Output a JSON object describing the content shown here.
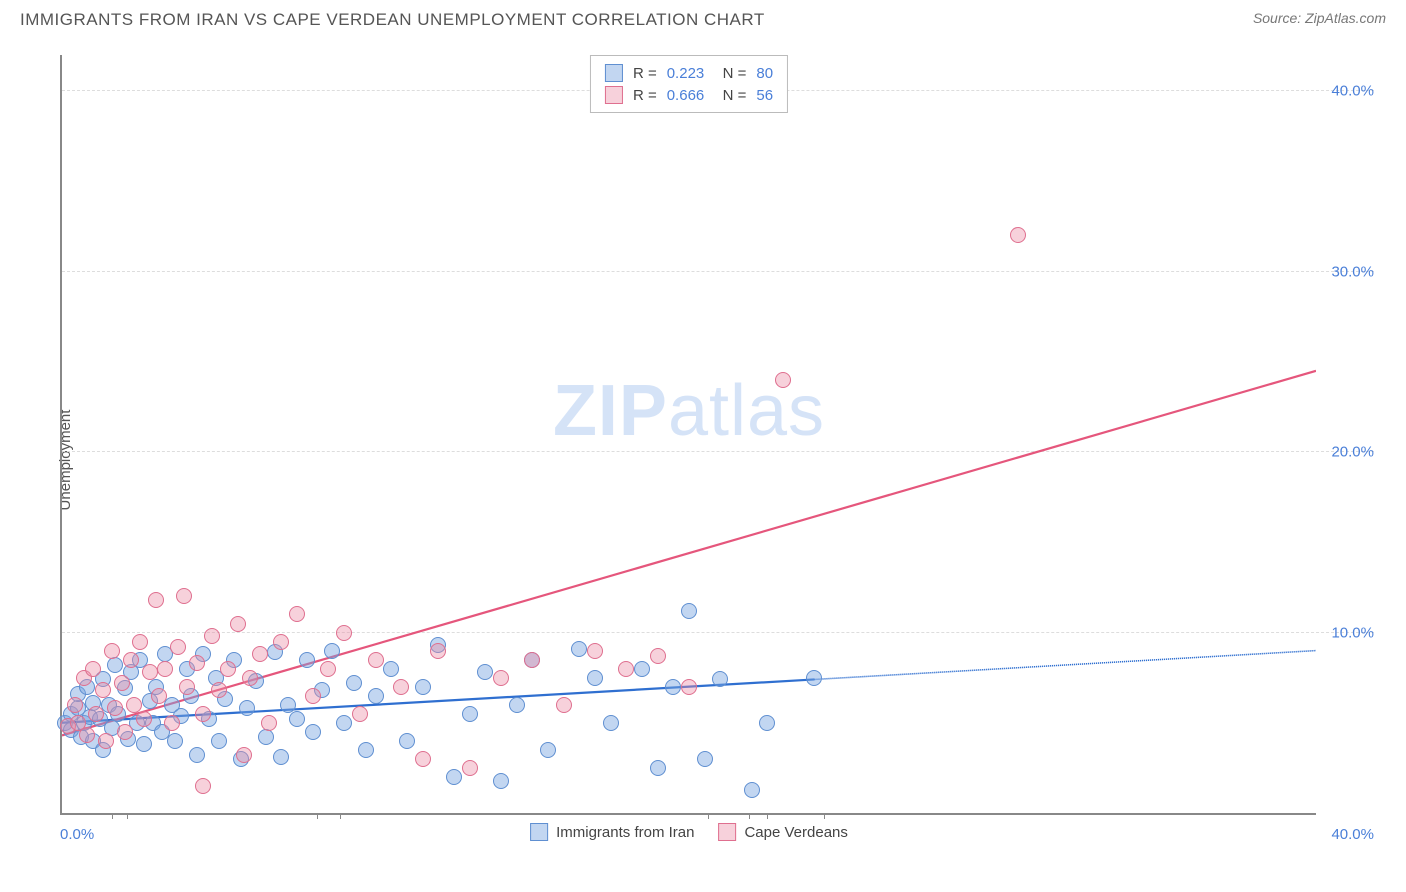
{
  "title": "IMMIGRANTS FROM IRAN VS CAPE VERDEAN UNEMPLOYMENT CORRELATION CHART",
  "source": "Source: ZipAtlas.com",
  "watermark": {
    "part1": "ZIP",
    "part2": "atlas"
  },
  "ylabel": "Unemployment",
  "chart": {
    "type": "scatter",
    "xlim": [
      0,
      40
    ],
    "ylim": [
      0,
      42
    ],
    "yticks": [
      10,
      20,
      30,
      40
    ],
    "ytick_labels": [
      "10.0%",
      "20.0%",
      "30.0%",
      "40.0%"
    ],
    "xtick_labels": {
      "left": "0.0%",
      "right": "40.0%"
    },
    "xtick_marks_pct": [
      4,
      5.2,
      20.3,
      22.2,
      51.5,
      54.8,
      56.2,
      60.8
    ],
    "grid_color": "#dddddd",
    "background_color": "#ffffff",
    "axis_color": "#888888",
    "series": [
      {
        "name": "Immigrants from Iran",
        "color_fill": "rgba(120,165,225,0.45)",
        "color_stroke": "#5f8fd1",
        "r_value": "0.223",
        "n_value": "80",
        "trend_line": {
          "x1": 0,
          "y1": 5.0,
          "x2": 24,
          "y2": 7.4,
          "x2_dash": 40,
          "y2_dash": 9.0,
          "stroke": "#2f6fd0",
          "width": 2.2
        },
        "points": [
          [
            0.1,
            5.0
          ],
          [
            0.3,
            5.5
          ],
          [
            0.3,
            4.6
          ],
          [
            0.5,
            5.8
          ],
          [
            0.5,
            6.6
          ],
          [
            0.6,
            4.2
          ],
          [
            0.7,
            5.0
          ],
          [
            0.8,
            7.0
          ],
          [
            0.9,
            5.3
          ],
          [
            1.0,
            4.0
          ],
          [
            1.0,
            6.1
          ],
          [
            1.2,
            5.2
          ],
          [
            1.3,
            7.4
          ],
          [
            1.3,
            3.5
          ],
          [
            1.5,
            6.0
          ],
          [
            1.6,
            4.7
          ],
          [
            1.7,
            8.2
          ],
          [
            1.8,
            5.5
          ],
          [
            2.0,
            6.9
          ],
          [
            2.1,
            4.1
          ],
          [
            2.2,
            7.8
          ],
          [
            2.4,
            5.0
          ],
          [
            2.5,
            8.5
          ],
          [
            2.6,
            3.8
          ],
          [
            2.8,
            6.2
          ],
          [
            2.9,
            5.0
          ],
          [
            3.0,
            7.0
          ],
          [
            3.2,
            4.5
          ],
          [
            3.3,
            8.8
          ],
          [
            3.5,
            6.0
          ],
          [
            3.6,
            4.0
          ],
          [
            3.8,
            5.4
          ],
          [
            4.0,
            8.0
          ],
          [
            4.1,
            6.5
          ],
          [
            4.3,
            3.2
          ],
          [
            4.5,
            8.8
          ],
          [
            4.7,
            5.2
          ],
          [
            4.9,
            7.5
          ],
          [
            5.0,
            4.0
          ],
          [
            5.2,
            6.3
          ],
          [
            5.5,
            8.5
          ],
          [
            5.7,
            3.0
          ],
          [
            5.9,
            5.8
          ],
          [
            6.2,
            7.3
          ],
          [
            6.5,
            4.2
          ],
          [
            6.8,
            8.9
          ],
          [
            7.0,
            3.1
          ],
          [
            7.2,
            6.0
          ],
          [
            7.5,
            5.2
          ],
          [
            7.8,
            8.5
          ],
          [
            8.0,
            4.5
          ],
          [
            8.3,
            6.8
          ],
          [
            8.6,
            9.0
          ],
          [
            9.0,
            5.0
          ],
          [
            9.3,
            7.2
          ],
          [
            9.7,
            3.5
          ],
          [
            10.0,
            6.5
          ],
          [
            10.5,
            8.0
          ],
          [
            11.0,
            4.0
          ],
          [
            11.5,
            7.0
          ],
          [
            12.0,
            9.3
          ],
          [
            12.5,
            2.0
          ],
          [
            13.0,
            5.5
          ],
          [
            13.5,
            7.8
          ],
          [
            14.0,
            1.8
          ],
          [
            14.5,
            6.0
          ],
          [
            15.0,
            8.5
          ],
          [
            15.5,
            3.5
          ],
          [
            16.5,
            9.1
          ],
          [
            17.0,
            7.5
          ],
          [
            17.5,
            5.0
          ],
          [
            18.5,
            8.0
          ],
          [
            19.0,
            2.5
          ],
          [
            19.5,
            7.0
          ],
          [
            20.0,
            11.2
          ],
          [
            20.5,
            3.0
          ],
          [
            21.0,
            7.4
          ],
          [
            22.0,
            1.3
          ],
          [
            22.5,
            5.0
          ],
          [
            24.0,
            7.5
          ]
        ]
      },
      {
        "name": "Cape Verdeans",
        "color_fill": "rgba(235,140,165,0.40)",
        "color_stroke": "#df6f8f",
        "r_value": "0.666",
        "n_value": "56",
        "trend_line": {
          "x1": 0,
          "y1": 4.3,
          "x2": 40,
          "y2": 24.5,
          "stroke": "#e5567c",
          "width": 2.2
        },
        "points": [
          [
            0.2,
            4.8
          ],
          [
            0.4,
            6.0
          ],
          [
            0.5,
            5.0
          ],
          [
            0.7,
            7.5
          ],
          [
            0.8,
            4.3
          ],
          [
            1.0,
            8.0
          ],
          [
            1.1,
            5.5
          ],
          [
            1.3,
            6.8
          ],
          [
            1.4,
            4.0
          ],
          [
            1.6,
            9.0
          ],
          [
            1.7,
            5.8
          ],
          [
            1.9,
            7.2
          ],
          [
            2.0,
            4.5
          ],
          [
            2.2,
            8.5
          ],
          [
            2.3,
            6.0
          ],
          [
            2.5,
            9.5
          ],
          [
            2.6,
            5.2
          ],
          [
            2.8,
            7.8
          ],
          [
            3.0,
            11.8
          ],
          [
            3.1,
            6.5
          ],
          [
            3.3,
            8.0
          ],
          [
            3.5,
            5.0
          ],
          [
            3.7,
            9.2
          ],
          [
            3.9,
            12.0
          ],
          [
            4.0,
            7.0
          ],
          [
            4.3,
            8.3
          ],
          [
            4.5,
            5.5
          ],
          [
            4.8,
            9.8
          ],
          [
            5.0,
            6.8
          ],
          [
            5.3,
            8.0
          ],
          [
            5.6,
            10.5
          ],
          [
            5.8,
            3.2
          ],
          [
            6.0,
            7.5
          ],
          [
            6.3,
            8.8
          ],
          [
            6.6,
            5.0
          ],
          [
            7.0,
            9.5
          ],
          [
            7.5,
            11.0
          ],
          [
            8.0,
            6.5
          ],
          [
            8.5,
            8.0
          ],
          [
            9.0,
            10.0
          ],
          [
            9.5,
            5.5
          ],
          [
            10.0,
            8.5
          ],
          [
            10.8,
            7.0
          ],
          [
            11.5,
            3.0
          ],
          [
            12.0,
            9.0
          ],
          [
            13.0,
            2.5
          ],
          [
            14.0,
            7.5
          ],
          [
            15.0,
            8.5
          ],
          [
            16.0,
            6.0
          ],
          [
            17.0,
            9.0
          ],
          [
            18.0,
            8.0
          ],
          [
            19.0,
            8.7
          ],
          [
            20.0,
            7.0
          ],
          [
            23.0,
            24.0
          ],
          [
            30.5,
            32.0
          ],
          [
            4.5,
            1.5
          ]
        ]
      }
    ]
  },
  "legend_bottom": [
    {
      "label": "Immigrants from Iran",
      "fill": "rgba(120,165,225,0.45)",
      "stroke": "#5f8fd1"
    },
    {
      "label": "Cape Verdeans",
      "fill": "rgba(235,140,165,0.40)",
      "stroke": "#df6f8f"
    }
  ]
}
